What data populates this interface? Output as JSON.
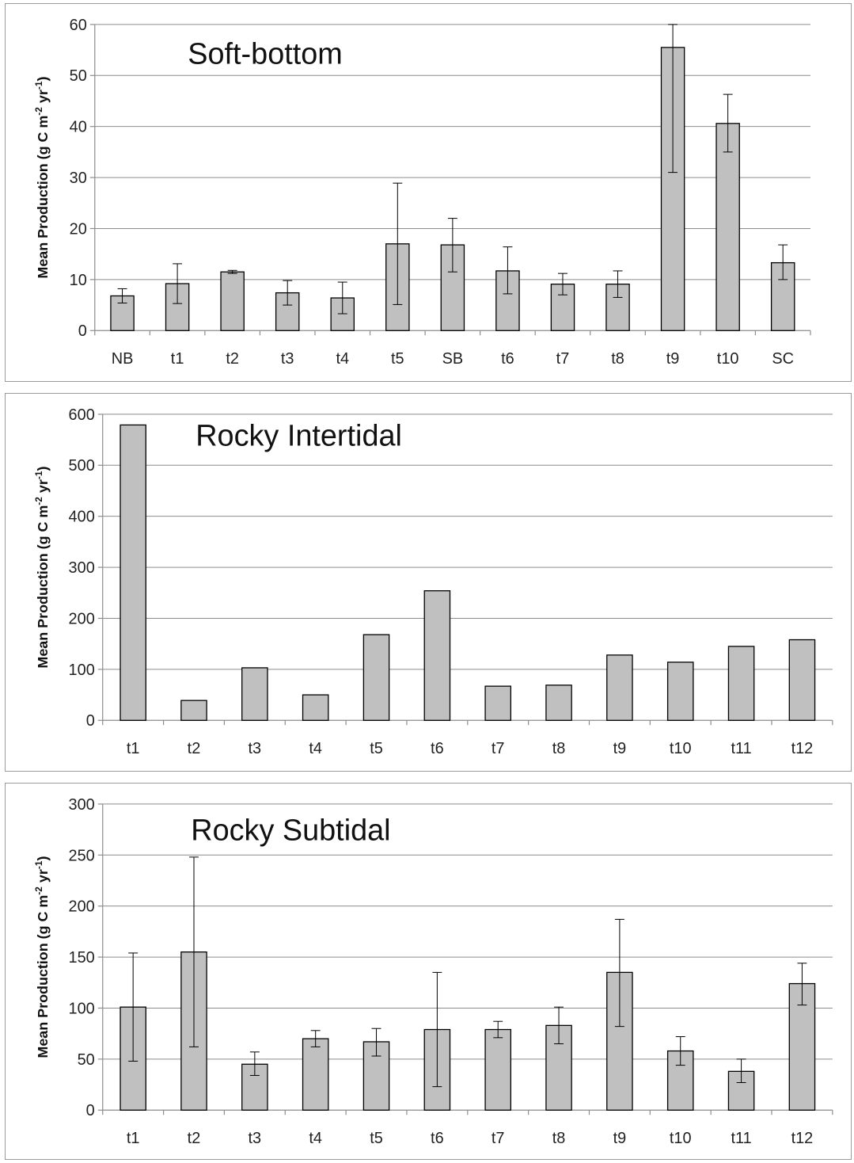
{
  "chart_data": [
    {
      "type": "bar",
      "title": "Soft-bottom",
      "ylabel": "Mean Production (g C m-2 yr-1)",
      "ylabel_main": "Mean Production (g C m",
      "ylabel_sup1": "-2",
      "ylabel_mid": " yr",
      "ylabel_sup2": "-1",
      "ylabel_end": ")",
      "ylim": [
        0,
        60
      ],
      "yticks": [
        0,
        10,
        20,
        30,
        40,
        50,
        60
      ],
      "grid": true,
      "categories": [
        "NB",
        "t1",
        "t2",
        "t3",
        "t4",
        "t5",
        "SB",
        "t6",
        "t7",
        "t8",
        "t9",
        "t10",
        "SC"
      ],
      "values": [
        6.8,
        9.2,
        11.5,
        7.4,
        6.4,
        17.0,
        16.8,
        11.7,
        9.1,
        9.1,
        55.5,
        40.6,
        13.3
      ],
      "err_low": [
        5.4,
        5.3,
        11.2,
        5.0,
        3.3,
        5.1,
        11.5,
        7.2,
        7.0,
        6.5,
        31.0,
        35.0,
        10.0
      ],
      "err_high": [
        8.2,
        13.1,
        11.8,
        9.8,
        9.5,
        28.9,
        22.0,
        16.4,
        11.2,
        11.7,
        60.0,
        46.3,
        16.8
      ]
    },
    {
      "type": "bar",
      "title": "Rocky Intertidal",
      "ylabel": "Mean Production (g C m-2 yr-1)",
      "ylabel_main": "Mean Production (g C m",
      "ylabel_sup1": "-2",
      "ylabel_mid": " yr",
      "ylabel_sup2": "-1",
      "ylabel_end": ")",
      "ylim": [
        0,
        600
      ],
      "yticks": [
        0,
        100,
        200,
        300,
        400,
        500,
        600
      ],
      "grid": true,
      "categories": [
        "t1",
        "t2",
        "t3",
        "t4",
        "t5",
        "t6",
        "t7",
        "t8",
        "t9",
        "t10",
        "t11",
        "t12"
      ],
      "values": [
        579,
        39,
        103,
        50,
        168,
        254,
        67,
        69,
        128,
        114,
        145,
        158
      ]
    },
    {
      "type": "bar",
      "title": "Rocky Subtidal",
      "ylabel": "Mean Production (g C m-2 yr-1)",
      "ylabel_main": "Mean Production (g C m",
      "ylabel_sup1": "-2",
      "ylabel_mid": " yr",
      "ylabel_sup2": "-1",
      "ylabel_end": ")",
      "ylim": [
        0,
        300
      ],
      "yticks": [
        0,
        50,
        100,
        150,
        200,
        250,
        300
      ],
      "grid": true,
      "categories": [
        "t1",
        "t2",
        "t3",
        "t4",
        "t5",
        "t6",
        "t7",
        "t8",
        "t9",
        "t10",
        "t11",
        "t12"
      ],
      "values": [
        101,
        155,
        45,
        70,
        67,
        79,
        79,
        83,
        135,
        58,
        38,
        124
      ],
      "err_low": [
        48,
        62,
        34,
        62,
        53,
        23,
        71,
        65,
        82,
        44,
        27,
        103
      ],
      "err_high": [
        154,
        248,
        57,
        78,
        80,
        135,
        87,
        101,
        187,
        72,
        50,
        144
      ]
    }
  ]
}
